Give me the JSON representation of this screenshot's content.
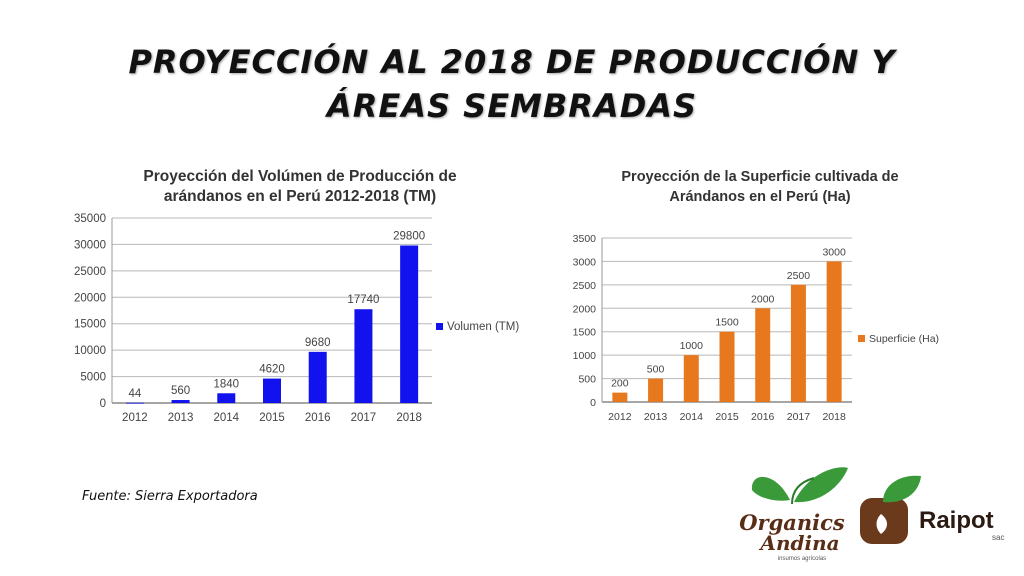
{
  "slide": {
    "title_line1": "PROYECCIÓN AL 2018 DE PRODUCCIÓN Y",
    "title_line2": "ÁREAS SEMBRADAS",
    "source": "Fuente: Sierra Exportadora"
  },
  "logos": {
    "organics_line1": "Organics",
    "organics_line2": "Andina",
    "organics_tagline": "insumos agrícolas",
    "raipot_name": "Raipot",
    "raipot_suffix": "sac"
  },
  "colors": {
    "volumen": "#1212ee",
    "superficie": "#e8781e",
    "green": "#3a9a3a",
    "brown": "#6b3a1c"
  },
  "chart_data": [
    {
      "type": "bar",
      "title_line1": "Proyección del Volúmen de Producción de",
      "title_line2": "arándanos en el Perú 2012-2018 (TM)",
      "categories": [
        "2012",
        "2013",
        "2014",
        "2015",
        "2016",
        "2017",
        "2018"
      ],
      "series": [
        {
          "name": "Volumen (TM)",
          "values": [
            44,
            560,
            1840,
            4620,
            9680,
            17740,
            29800
          ]
        }
      ],
      "data_labels": [
        "44",
        "560",
        "1840",
        "4620",
        "9680",
        "17740",
        "29800"
      ],
      "yticks": [
        0,
        5000,
        10000,
        15000,
        20000,
        25000,
        30000,
        35000
      ],
      "ylim": [
        0,
        35000
      ],
      "grid": true,
      "legend": "right"
    },
    {
      "type": "bar",
      "title_line1": "Proyección de la Superficie cultivada de",
      "title_line2": "Arándanos en el Perú (Ha)",
      "categories": [
        "2012",
        "2013",
        "2014",
        "2015",
        "2016",
        "2017",
        "2018"
      ],
      "series": [
        {
          "name": "Superficie (Ha)",
          "values": [
            200,
            500,
            1000,
            1500,
            2000,
            2500,
            3000
          ]
        }
      ],
      "data_labels": [
        "200",
        "500",
        "1000",
        "1500",
        "2000",
        "2500",
        "3000"
      ],
      "yticks": [
        0,
        500,
        1000,
        1500,
        2000,
        2500,
        3000,
        3500
      ],
      "ylim": [
        0,
        3500
      ],
      "grid": true,
      "legend": "right"
    }
  ]
}
